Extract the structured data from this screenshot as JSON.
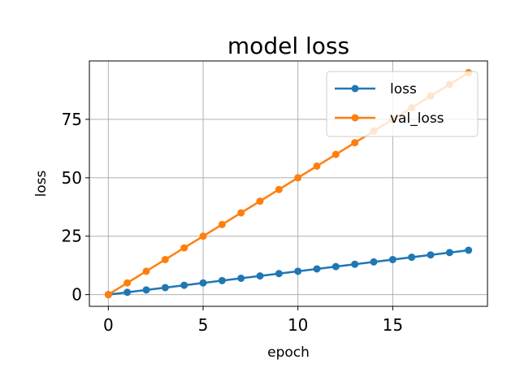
{
  "chart_data": {
    "type": "line",
    "title": "model loss",
    "xlabel": "epoch",
    "ylabel": "loss",
    "x": [
      0,
      1,
      2,
      3,
      4,
      5,
      6,
      7,
      8,
      9,
      10,
      11,
      12,
      13,
      14,
      15,
      16,
      17,
      18,
      19
    ],
    "xlim": [
      -1,
      20
    ],
    "ylim": [
      -5,
      100
    ],
    "xticks": [
      0,
      5,
      10,
      15
    ],
    "yticks": [
      0,
      25,
      50,
      75
    ],
    "grid": true,
    "legend_position": "top-right",
    "series": [
      {
        "name": "loss",
        "color": "#1f77b4",
        "marker": "circle",
        "values": [
          0,
          1,
          2,
          3,
          4,
          5,
          6,
          7,
          8,
          9,
          10,
          11,
          12,
          13,
          14,
          15,
          16,
          17,
          18,
          19
        ]
      },
      {
        "name": "val_loss",
        "color": "#ff7f0e",
        "marker": "circle",
        "values": [
          0,
          5,
          10,
          15,
          20,
          25,
          30,
          35,
          40,
          45,
          50,
          55,
          60,
          65,
          70,
          75,
          80,
          85,
          90,
          95
        ]
      }
    ]
  }
}
